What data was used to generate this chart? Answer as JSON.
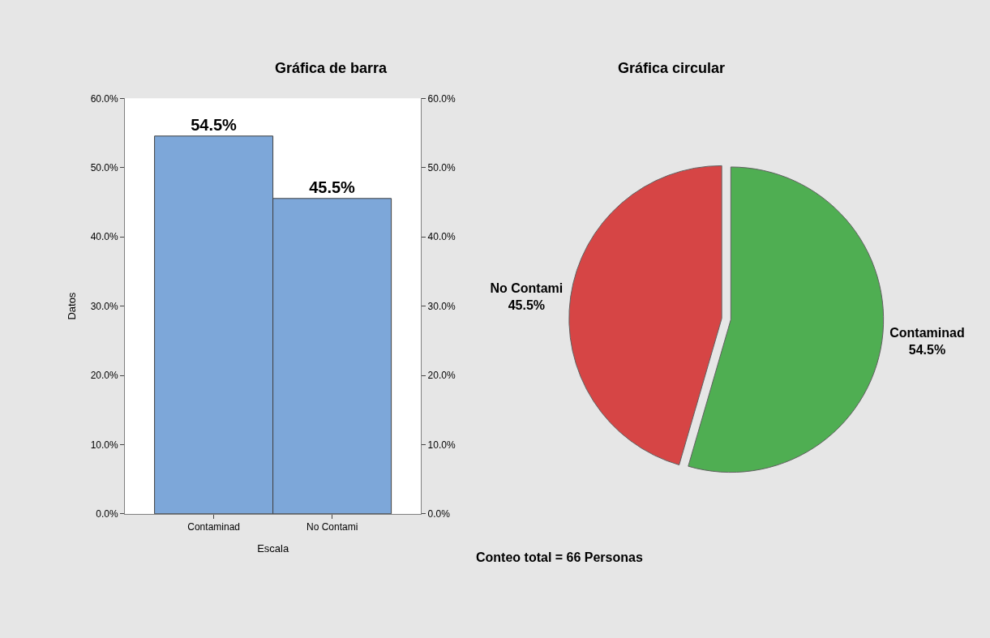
{
  "chart_data": [
    {
      "type": "bar",
      "title": "Gráfica de barra",
      "xlabel": "Escala",
      "ylabel": "Datos",
      "categories": [
        "Contaminad",
        "No Contami"
      ],
      "values": [
        54.5,
        45.5
      ],
      "color": "#7da7d9",
      "value_labels": [
        "54.5%",
        "45.5%"
      ],
      "ylim": [
        0,
        60
      ],
      "yticks": [
        {
          "value": 0,
          "label": "0.0%"
        },
        {
          "value": 10,
          "label": "10.0%"
        },
        {
          "value": 20,
          "label": "20.0%"
        },
        {
          "value": 30,
          "label": "30.0%"
        },
        {
          "value": 40,
          "label": "40.0%"
        },
        {
          "value": 50,
          "label": "50.0%"
        },
        {
          "value": 60,
          "label": "60.0%"
        }
      ],
      "y2lim": [
        0,
        60
      ],
      "y2ticks": [
        {
          "value": 0,
          "label": "0.0%"
        },
        {
          "value": 10,
          "label": "10.0%"
        },
        {
          "value": 20,
          "label": "20.0%"
        },
        {
          "value": 30,
          "label": "30.0%"
        },
        {
          "value": 40,
          "label": "40.0%"
        },
        {
          "value": 50,
          "label": "50.0%"
        },
        {
          "value": 60,
          "label": "60.0%"
        }
      ],
      "grid": false
    },
    {
      "type": "pie",
      "title": "Gráfica circular",
      "categories": [
        "Contaminad",
        "No Contami"
      ],
      "values": [
        54.5,
        45.5
      ],
      "colors": [
        "#4fae52",
        "#d64545"
      ],
      "value_labels": [
        "54.5%",
        "45.5%"
      ],
      "annotations": [
        "Conteo total = 66 Personas"
      ]
    }
  ]
}
